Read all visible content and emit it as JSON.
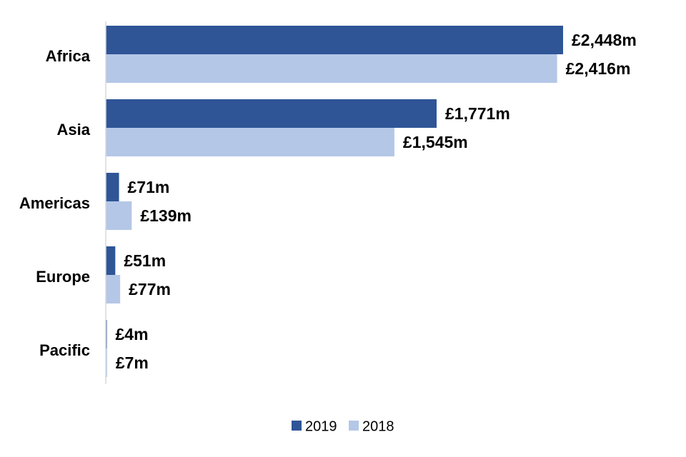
{
  "chart_data": {
    "type": "bar",
    "orientation": "horizontal",
    "categories": [
      "Africa",
      "Asia",
      "Americas",
      "Europe",
      "Pacific"
    ],
    "series": [
      {
        "name": "2019",
        "color": "#2f5597",
        "values": [
          2448,
          1771,
          71,
          51,
          4
        ],
        "labels": [
          "£2,448m",
          "£1,771m",
          "£71m",
          "£51m",
          "£4m"
        ]
      },
      {
        "name": "2018",
        "color": "#b4c7e7",
        "values": [
          2416,
          1545,
          139,
          77,
          7
        ],
        "labels": [
          "£2,416m",
          "£1,545m",
          "£139m",
          "£77m",
          "£7m"
        ]
      }
    ],
    "title": "",
    "xlabel": "",
    "ylabel": "",
    "xlim": [
      0,
      2448
    ],
    "grid": false,
    "legend": "bottom-center"
  }
}
